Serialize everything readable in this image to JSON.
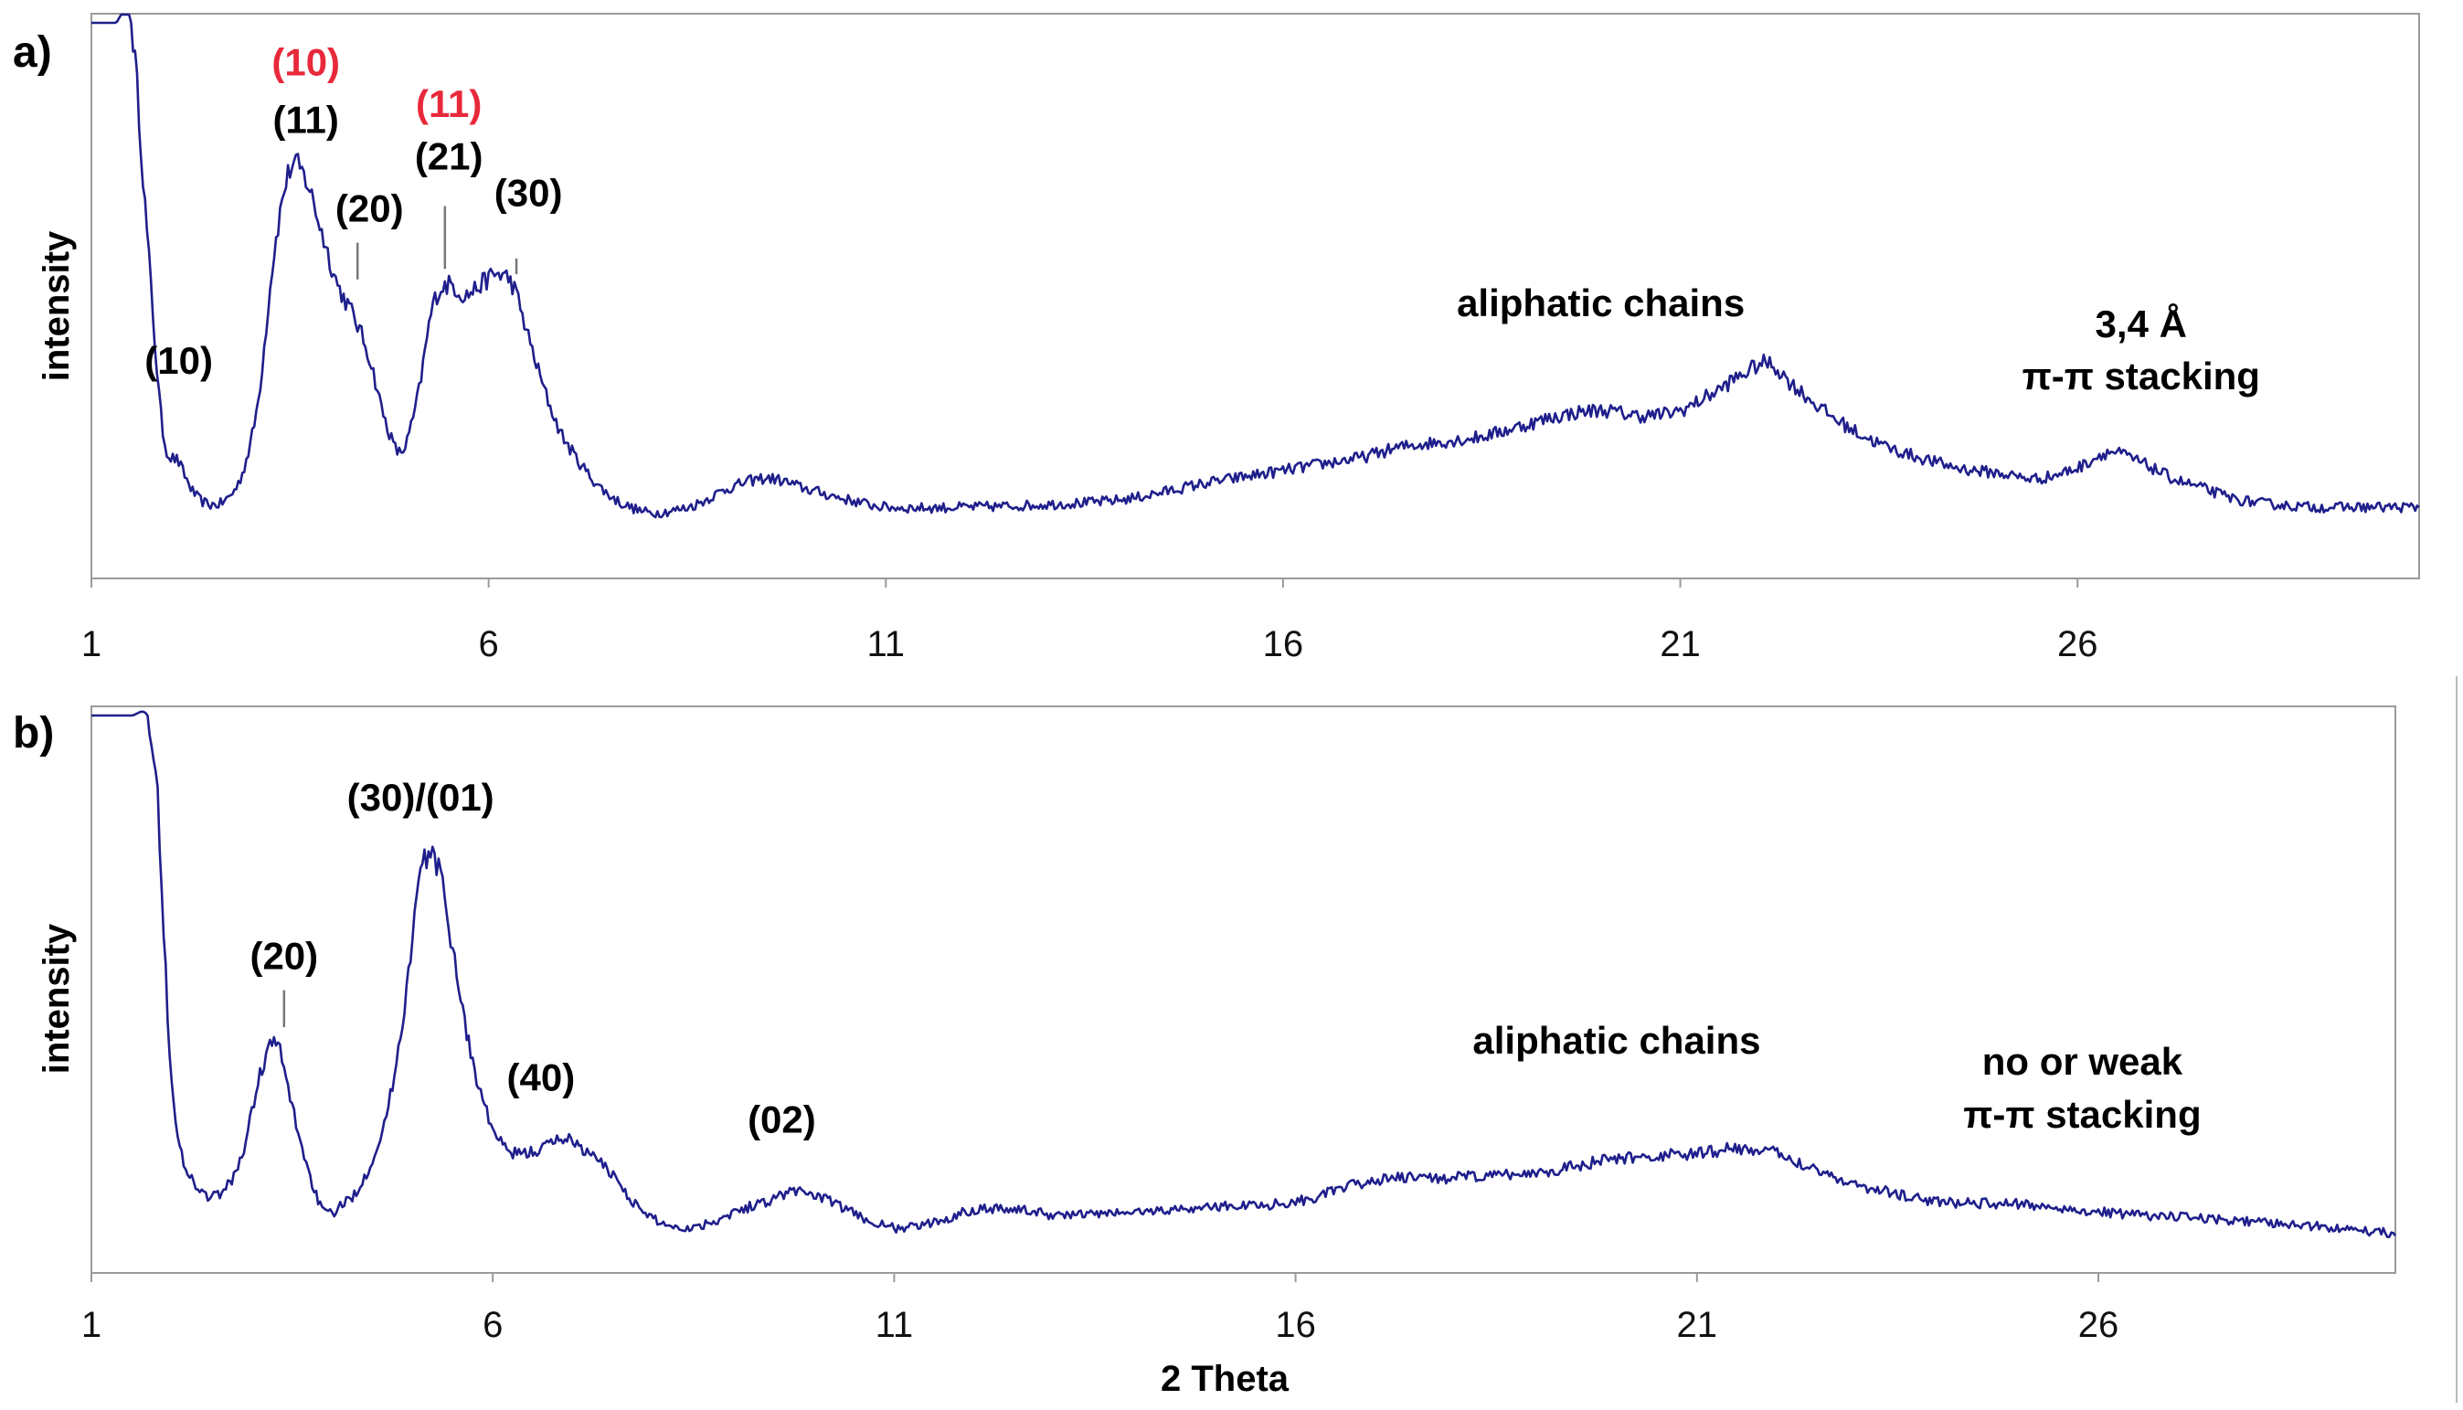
{
  "chart_data": [
    {
      "type": "line",
      "panel_label": "a)",
      "ylabel": "intensity",
      "xlabel": "",
      "xlim": [
        1,
        30.3
      ],
      "ylim": [
        0,
        100
      ],
      "xticks": [
        1,
        6,
        11,
        16,
        21,
        26
      ],
      "color": "#1f1f8c",
      "series": [
        {
          "x": [
            1.0,
            1.3,
            1.5,
            1.7,
            1.9,
            2.1,
            2.3,
            2.5,
            2.7,
            2.9,
            3.1,
            3.3,
            3.5,
            3.7,
            3.9,
            4.1,
            4.3,
            4.5,
            4.7,
            4.9,
            5.1,
            5.3,
            5.5,
            5.7,
            5.9,
            6.1,
            6.3,
            6.5,
            6.7,
            6.9,
            7.1,
            7.3,
            7.5,
            7.7,
            8.0,
            8.3,
            8.6,
            9.0,
            9.5,
            10.0,
            10.5,
            11.0,
            12.0,
            13.0,
            14.0,
            15.0,
            16.0,
            17.0,
            17.5,
            18.0,
            18.5,
            19.0,
            19.5,
            20.0,
            20.5,
            21.0,
            21.5,
            21.8,
            22.1,
            22.4,
            22.8,
            23.2,
            23.6,
            24.0,
            24.5,
            25.0,
            25.5,
            26.0,
            26.4,
            26.8,
            27.2,
            27.6,
            28.0,
            28.5,
            29.0,
            29.5,
            30.3
          ],
          "y": [
            100,
            100,
            100,
            60,
            22,
            16,
            10,
            8,
            9,
            14,
            28,
            56,
            72,
            70,
            60,
            50,
            44,
            36,
            24,
            18,
            28,
            46,
            50,
            48,
            50,
            52,
            50,
            40,
            30,
            22,
            17,
            13,
            10,
            8,
            6.5,
            6.8,
            8,
            11,
            13,
            11,
            9,
            7.5,
            7.5,
            8,
            9,
            12,
            14.5,
            17,
            19,
            20,
            21,
            23,
            25,
            26,
            25,
            26,
            30,
            33,
            35,
            31,
            26,
            22,
            19,
            17,
            15,
            14,
            13,
            15,
            18,
            16,
            13,
            11,
            9,
            8,
            7.5,
            7.5,
            7.5
          ]
        }
      ],
      "annotations": [
        {
          "text": "(10)",
          "x": 2.1,
          "y": 33,
          "color": "#000000"
        },
        {
          "text": "(10)",
          "x": 3.7,
          "y": 90,
          "color": "#e8293b"
        },
        {
          "text": "(11)",
          "x": 3.7,
          "y": 79,
          "color": "#000000"
        },
        {
          "text": "(20)",
          "x": 4.5,
          "y": 62,
          "color": "#000000"
        },
        {
          "text": "(11)",
          "x": 5.5,
          "y": 82,
          "color": "#e8293b"
        },
        {
          "text": "(21)",
          "x": 5.5,
          "y": 72,
          "color": "#000000"
        },
        {
          "text": "(30)",
          "x": 6.5,
          "y": 65,
          "color": "#000000"
        },
        {
          "text": "aliphatic chains",
          "x": 20.0,
          "y": 44,
          "color": "#000000"
        },
        {
          "text": "3,4 Å",
          "x": 26.8,
          "y": 40,
          "color": "#000000"
        },
        {
          "text": "π-π stacking",
          "x": 26.8,
          "y": 30,
          "color": "#000000"
        }
      ],
      "markers": [
        {
          "x": 4.35,
          "y1": 51,
          "y2": 58
        },
        {
          "x": 5.45,
          "y1": 53,
          "y2": 65
        },
        {
          "x": 6.35,
          "y1": 52,
          "y2": 55
        }
      ]
    },
    {
      "type": "line",
      "panel_label": "b)",
      "ylabel": "intensity",
      "xlabel": "2 Theta",
      "xlim": [
        1,
        29.7
      ],
      "ylim": [
        0,
        100
      ],
      "xticks": [
        1,
        6,
        11,
        16,
        21,
        26
      ],
      "color": "#1f1f8c",
      "series": [
        {
          "x": [
            1.0,
            1.5,
            1.7,
            1.8,
            1.9,
            2.0,
            2.1,
            2.3,
            2.5,
            2.7,
            2.9,
            3.1,
            3.3,
            3.5,
            3.7,
            3.9,
            4.1,
            4.3,
            4.5,
            4.7,
            4.9,
            5.1,
            5.3,
            5.5,
            5.7,
            5.9,
            6.1,
            6.3,
            6.6,
            6.9,
            7.2,
            7.5,
            7.8,
            8.1,
            8.4,
            8.7,
            9.0,
            9.4,
            9.8,
            10.2,
            10.6,
            11.0,
            11.5,
            12.0,
            12.5,
            13.0,
            14.0,
            15.0,
            16.0,
            17.0,
            18.0,
            19.0,
            20.0,
            21.0,
            21.5,
            22.0,
            22.5,
            23.0,
            24.0,
            25.0,
            26.0,
            27.0,
            28.0,
            29.0,
            29.7
          ],
          "y": [
            100,
            100,
            100,
            90,
            60,
            30,
            18,
            11,
            9,
            11,
            18,
            32,
            38,
            26,
            14,
            6,
            7,
            10,
            16,
            26,
            45,
            70,
            72,
            56,
            38,
            26,
            19,
            17,
            18,
            20,
            17,
            13,
            7,
            4,
            3,
            4,
            6,
            8,
            10,
            8,
            5,
            3,
            4,
            6.5,
            6.5,
            5.5,
            6,
            7,
            8,
            12,
            12.5,
            13.5,
            16,
            17,
            18,
            17,
            14,
            11,
            8,
            7.5,
            6,
            5,
            4,
            3,
            2
          ]
        }
      ],
      "annotations": [
        {
          "text": "(20)",
          "x": 3.4,
          "y": 52,
          "color": "#000000"
        },
        {
          "text": "(30)/(01)",
          "x": 5.1,
          "y": 82,
          "color": "#000000"
        },
        {
          "text": "(40)",
          "x": 6.6,
          "y": 29,
          "color": "#000000"
        },
        {
          "text": "(02)",
          "x": 9.6,
          "y": 21,
          "color": "#000000"
        },
        {
          "text": "aliphatic chains",
          "x": 20.0,
          "y": 36,
          "color": "#000000"
        },
        {
          "text": "no or weak",
          "x": 25.8,
          "y": 32,
          "color": "#000000"
        },
        {
          "text": "π-π stacking",
          "x": 25.8,
          "y": 22,
          "color": "#000000"
        }
      ],
      "markers": [
        {
          "x": 3.4,
          "y1": 41,
          "y2": 48
        }
      ]
    }
  ]
}
